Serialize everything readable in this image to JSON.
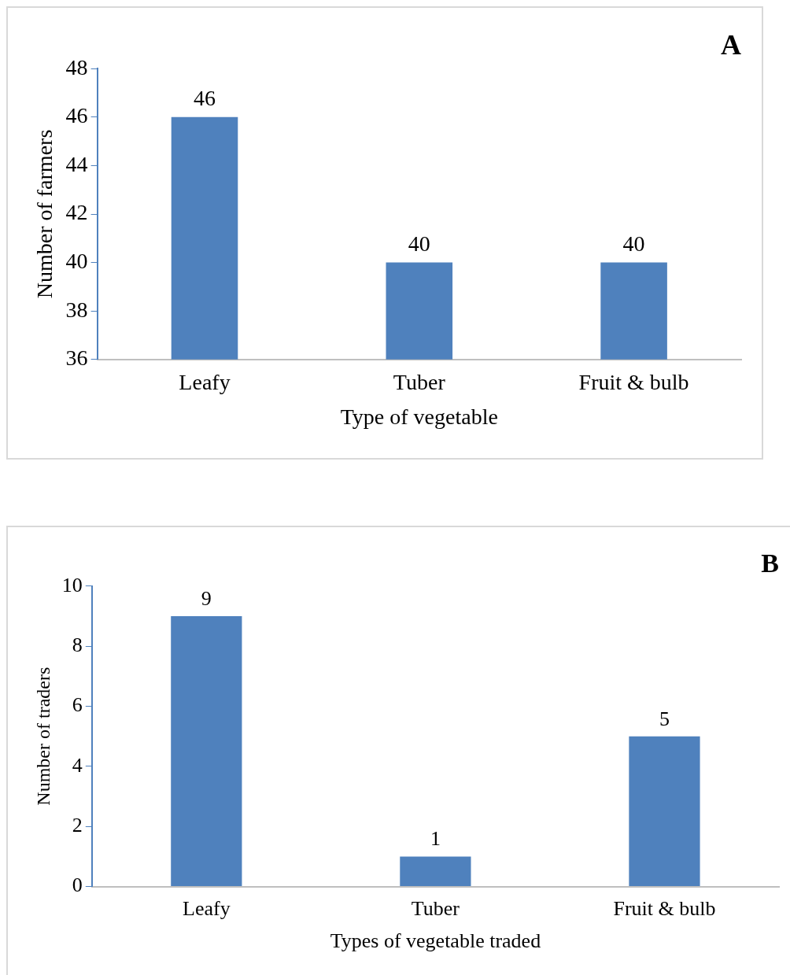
{
  "chart_data": [
    {
      "type": "bar",
      "title": "A",
      "categories": [
        "Leafy",
        "Tuber",
        "Fruit & bulb"
      ],
      "values": [
        46,
        40,
        40
      ],
      "color": "#4f81bd",
      "xlabel": "Type of vegetable",
      "ylabel": "Number of farmers",
      "ylim": [
        36,
        48
      ],
      "yticks": [
        36,
        38,
        40,
        42,
        44,
        46,
        48
      ],
      "data_labels": true,
      "grid": false,
      "legend": false
    },
    {
      "type": "bar",
      "title": "B",
      "categories": [
        "Leafy",
        "Tuber",
        "Fruit & bulb"
      ],
      "values": [
        9,
        1,
        5
      ],
      "color": "#4f81bd",
      "xlabel": "Types of vegetable traded",
      "ylabel": "Number of traders",
      "ylim": [
        0,
        10
      ],
      "yticks": [
        0,
        2,
        4,
        6,
        8,
        10
      ],
      "data_labels": true,
      "grid": false,
      "legend": false
    }
  ]
}
